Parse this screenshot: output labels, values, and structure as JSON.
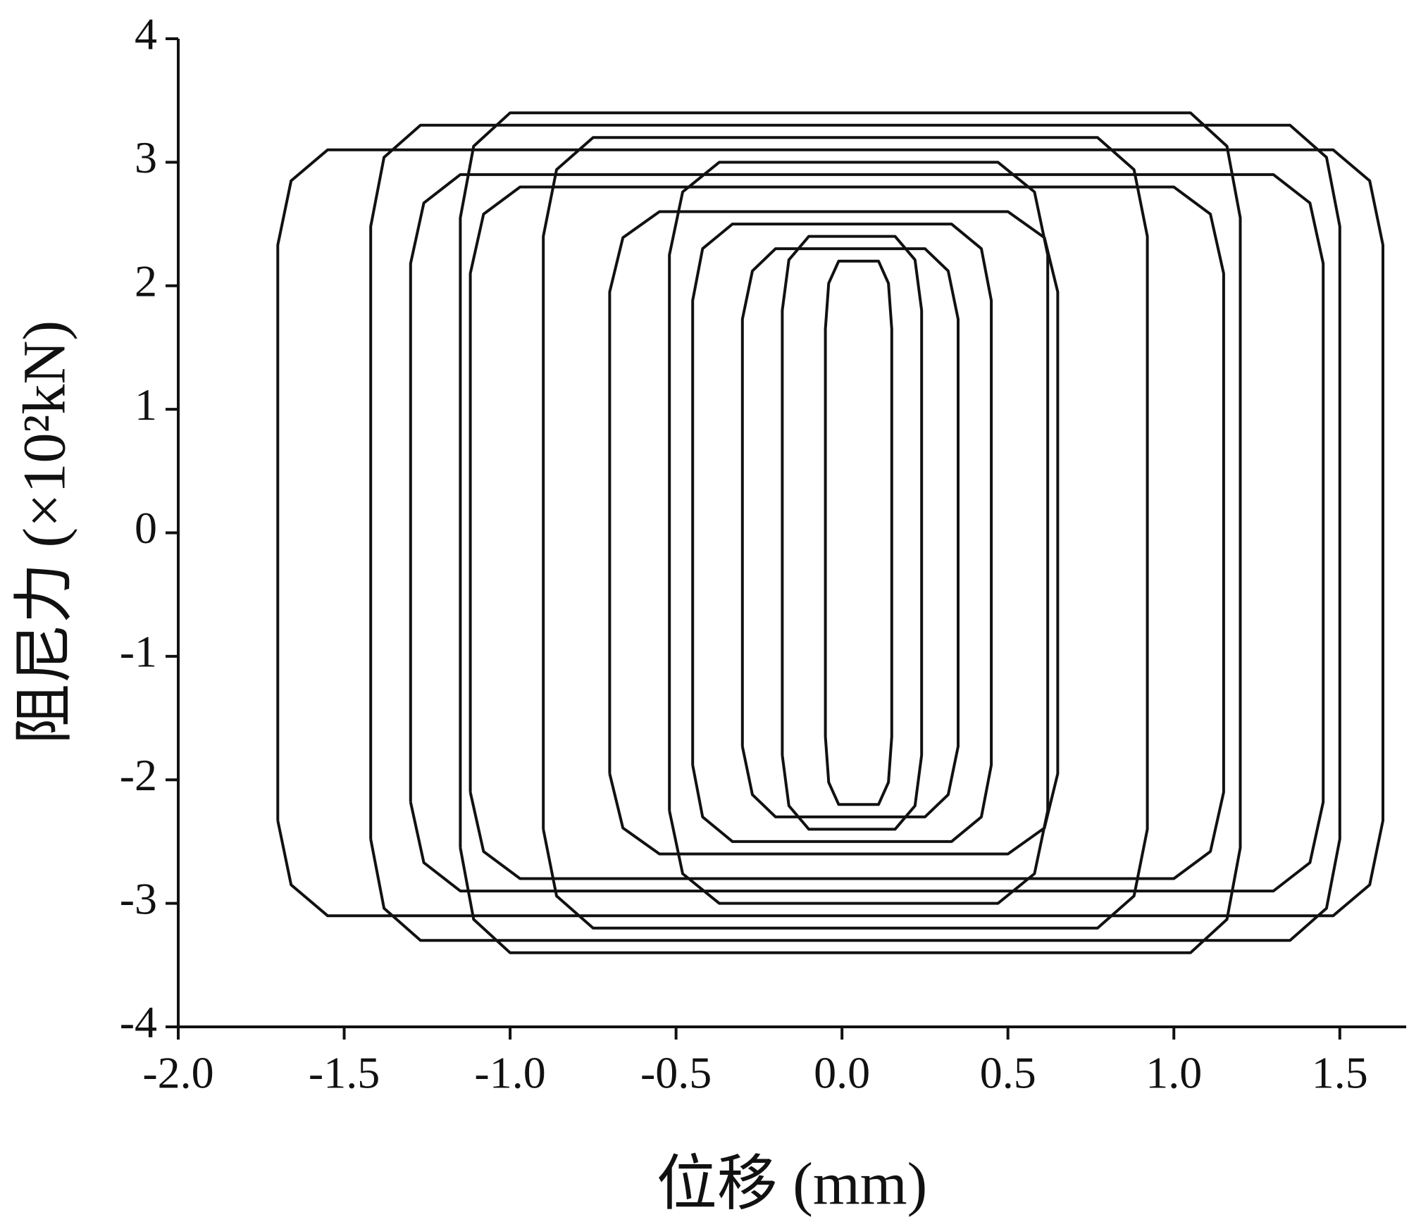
{
  "chart_data": {
    "type": "line",
    "x_label": "位移 (mm)",
    "y_label": "阻尼力 (×10²kN)",
    "xlim": [
      -2.0,
      1.7
    ],
    "ylim": [
      -4,
      4
    ],
    "xticks": [
      {
        "value": -2.0,
        "label": "-2.0"
      },
      -1.5,
      {
        "value": -1.0,
        "label": "-1.0"
      },
      -0.5,
      {
        "value": 0.0,
        "label": "0.0"
      },
      0.5,
      {
        "value": 1.0,
        "label": "1.0"
      },
      1.5
    ],
    "yticks": [
      -4,
      -3,
      -2,
      -1,
      0,
      1,
      2,
      3,
      4
    ],
    "series": [
      {
        "color": "#111111",
        "x": [
          -1.7,
          -1.7,
          -1.66,
          -1.55,
          1.48,
          1.59,
          1.63,
          1.63,
          1.59,
          1.48,
          -1.55,
          -1.66,
          -1.7,
          null,
          -1.42,
          -1.42,
          -1.38,
          -1.27,
          1.35,
          1.46,
          1.5,
          1.5,
          1.46,
          1.35,
          -1.27,
          -1.38,
          -1.42,
          null,
          -1.3,
          -1.3,
          -1.26,
          -1.15,
          1.3,
          1.41,
          1.45,
          1.45,
          1.41,
          1.3,
          -1.15,
          -1.26,
          -1.3,
          null,
          -1.15,
          -1.15,
          -1.11,
          -1.0,
          1.05,
          1.16,
          1.2,
          1.2,
          1.16,
          1.05,
          -1.0,
          -1.11,
          -1.15,
          null,
          -1.12,
          -1.12,
          -1.08,
          -0.97,
          1.0,
          1.11,
          1.15,
          1.15,
          1.11,
          1.0,
          -0.97,
          -1.08,
          -1.12,
          null,
          -0.9,
          -0.9,
          -0.86,
          -0.75,
          0.77,
          0.88,
          0.92,
          0.92,
          0.88,
          0.77,
          -0.75,
          -0.86,
          -0.9,
          null,
          -0.7,
          -0.7,
          -0.66,
          -0.55,
          0.5,
          0.61,
          0.65,
          0.65,
          0.61,
          0.5,
          -0.55,
          -0.66,
          -0.7,
          null,
          -0.52,
          -0.52,
          -0.48,
          -0.37,
          0.47,
          0.58,
          0.62,
          0.62,
          0.58,
          0.47,
          -0.37,
          -0.48,
          -0.52,
          null,
          -0.45,
          -0.45,
          -0.42,
          -0.33,
          0.33,
          0.42,
          0.45,
          0.45,
          0.42,
          0.33,
          -0.33,
          -0.42,
          -0.45,
          null,
          -0.3,
          -0.3,
          -0.27,
          -0.2,
          0.25,
          0.32,
          0.35,
          0.35,
          0.32,
          0.25,
          -0.2,
          -0.27,
          -0.3,
          null,
          -0.18,
          -0.18,
          -0.16,
          -0.1,
          0.16,
          0.22,
          0.24,
          0.24,
          0.22,
          0.16,
          -0.1,
          -0.16,
          -0.18,
          null,
          -0.05,
          -0.05,
          -0.04,
          -0.01,
          0.11,
          0.14,
          0.15,
          0.15,
          0.14,
          0.11,
          -0.01,
          -0.04,
          -0.05
        ],
        "y": [
          -2.33,
          2.33,
          2.85,
          3.1,
          3.1,
          2.85,
          2.33,
          -2.33,
          -2.85,
          -3.1,
          -3.1,
          -2.85,
          -2.33,
          null,
          -2.48,
          2.48,
          3.04,
          3.3,
          3.3,
          3.04,
          2.48,
          -2.48,
          -3.04,
          -3.3,
          -3.3,
          -3.04,
          -2.48,
          null,
          -2.18,
          2.18,
          2.67,
          2.9,
          2.9,
          2.67,
          2.18,
          -2.18,
          -2.67,
          -2.9,
          -2.9,
          -2.67,
          -2.18,
          null,
          -2.55,
          2.55,
          3.13,
          3.4,
          3.4,
          3.13,
          2.55,
          -2.55,
          -3.13,
          -3.4,
          -3.4,
          -3.13,
          -2.55,
          null,
          -2.1,
          2.1,
          2.58,
          2.8,
          2.8,
          2.58,
          2.1,
          -2.1,
          -2.58,
          -2.8,
          -2.8,
          -2.58,
          -2.1,
          null,
          -2.4,
          2.4,
          2.94,
          3.2,
          3.2,
          2.94,
          2.4,
          -2.4,
          -2.94,
          -3.2,
          -3.2,
          -2.94,
          -2.4,
          null,
          -1.95,
          1.95,
          2.39,
          2.6,
          2.6,
          2.39,
          1.95,
          -1.95,
          -2.39,
          -2.6,
          -2.6,
          -2.39,
          -1.95,
          null,
          -2.25,
          2.25,
          2.76,
          3.0,
          3.0,
          2.76,
          2.25,
          -2.25,
          -2.76,
          -3.0,
          -3.0,
          -2.76,
          -2.25,
          null,
          -1.88,
          1.88,
          2.3,
          2.5,
          2.5,
          2.3,
          1.88,
          -1.88,
          -2.3,
          -2.5,
          -2.5,
          -2.3,
          -1.88,
          null,
          -1.73,
          1.73,
          2.12,
          2.3,
          2.3,
          2.12,
          1.73,
          -1.73,
          -2.12,
          -2.3,
          -2.3,
          -2.12,
          -1.73,
          null,
          -1.8,
          1.8,
          2.21,
          2.4,
          2.4,
          2.21,
          1.8,
          -1.8,
          -2.21,
          -2.4,
          -2.4,
          -2.21,
          -1.8,
          null,
          -1.65,
          1.65,
          2.02,
          2.2,
          2.2,
          2.02,
          1.65,
          -1.65,
          -2.02,
          -2.2,
          -2.2,
          -2.02,
          -1.65
        ]
      }
    ]
  }
}
